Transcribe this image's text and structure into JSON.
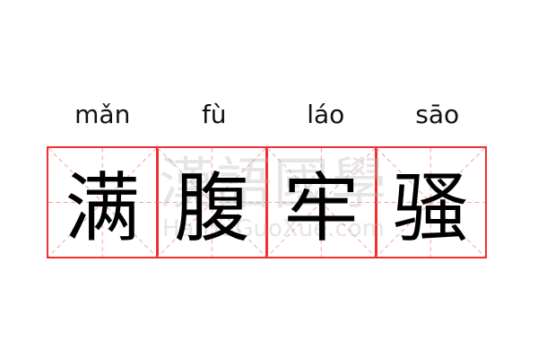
{
  "idiom": {
    "pinyin": [
      "mǎn",
      "fù",
      "láo",
      "sāo"
    ],
    "characters": [
      "满",
      "腹",
      "牢",
      "骚"
    ]
  },
  "watermark": {
    "chinese": "漢語國學",
    "latin": "HanYuGuoXue.com"
  },
  "colors": {
    "grid_border": "#f03030",
    "grid_guides": "#f7a0a0",
    "text": "#000000"
  }
}
